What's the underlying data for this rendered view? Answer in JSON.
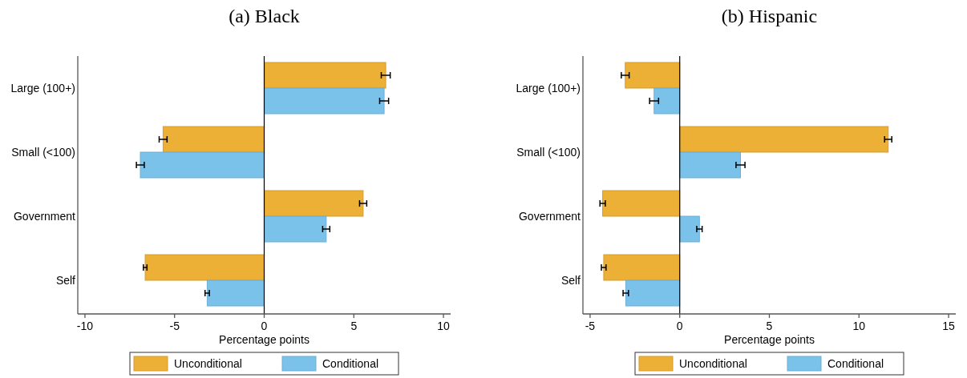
{
  "chart_data": [
    {
      "type": "bar",
      "orientation": "horizontal",
      "title": "(a) Black",
      "xlabel": "Percentage points",
      "categories": [
        "Large (100+)",
        "Small (<100)",
        "Government",
        "Self"
      ],
      "xlim": [
        -10.4,
        10.4
      ],
      "xticks": [
        -10,
        -5,
        0,
        5,
        10
      ],
      "legend": "bottom",
      "grid": false,
      "ref_lines": [
        {
          "axis": "x",
          "value": 0,
          "color": "#000000"
        }
      ],
      "series": [
        {
          "name": "Unconditional",
          "color": "#ebb035",
          "values": [
            6.78,
            -5.64,
            5.52,
            -6.64
          ],
          "errors": [
            0.25,
            0.22,
            0.2,
            0.1
          ]
        },
        {
          "name": "Conditional",
          "color": "#7bc2eb",
          "values": [
            6.69,
            -6.91,
            3.46,
            -3.18
          ],
          "errors": [
            0.25,
            0.22,
            0.2,
            0.12
          ]
        }
      ]
    },
    {
      "type": "bar",
      "orientation": "horizontal",
      "title": "(b) Hispanic",
      "xlabel": "Percentage points",
      "categories": [
        "Large (100+)",
        "Small (<100)",
        "Government",
        "Self"
      ],
      "xlim": [
        -5.4,
        15.4
      ],
      "xticks": [
        -5,
        0,
        5,
        10,
        15
      ],
      "legend": "bottom",
      "grid": false,
      "ref_lines": [
        {
          "axis": "x",
          "value": 0,
          "color": "#000000"
        }
      ],
      "series": [
        {
          "name": "Unconditional",
          "color": "#ebb035",
          "values": [
            -3.04,
            11.63,
            -4.3,
            -4.24
          ],
          "errors": [
            0.22,
            0.2,
            0.15,
            0.13
          ]
        },
        {
          "name": "Conditional",
          "color": "#7bc2eb",
          "values": [
            -1.43,
            3.39,
            1.1,
            -3.01
          ],
          "errors": [
            0.25,
            0.25,
            0.15,
            0.15
          ]
        }
      ]
    }
  ]
}
